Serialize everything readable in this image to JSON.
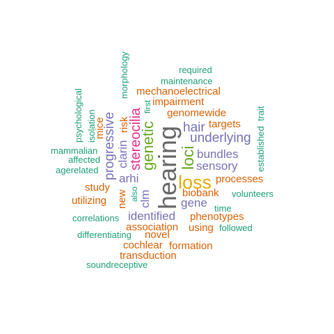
{
  "words": [
    {
      "id": "hearing",
      "text": "hearing",
      "color": "#666666"
    },
    {
      "id": "loss",
      "text": "loss",
      "color": "#E6AB02"
    },
    {
      "id": "stereocilia",
      "text": "stereocilia",
      "color": "#E7298A"
    },
    {
      "id": "genetic",
      "text": "genetic",
      "color": "#66A61E"
    },
    {
      "id": "loci",
      "text": "loci",
      "color": "#66A61E"
    },
    {
      "id": "hair",
      "text": "hair",
      "color": "#7570B3"
    },
    {
      "id": "underlying",
      "text": "underlying",
      "color": "#7570B3"
    },
    {
      "id": "bundles",
      "text": "bundles",
      "color": "#7570B3"
    },
    {
      "id": "sensory",
      "text": "sensory",
      "color": "#7570B3"
    },
    {
      "id": "progressive",
      "text": "progressive",
      "color": "#7570B3"
    },
    {
      "id": "clarin",
      "text": "clarin",
      "color": "#7570B3"
    },
    {
      "id": "arhi",
      "text": "arhi",
      "color": "#7570B3"
    },
    {
      "id": "clm",
      "text": "clm",
      "color": "#7570B3"
    },
    {
      "id": "gene",
      "text": "gene",
      "color": "#7570B3"
    },
    {
      "id": "identified",
      "text": "identified",
      "color": "#7570B3"
    },
    {
      "id": "mechanoelectrical",
      "text": "mechanoelectrical",
      "color": "#D95F02"
    },
    {
      "id": "impairment",
      "text": "impairment",
      "color": "#D95F02"
    },
    {
      "id": "genomewide",
      "text": "genomewide",
      "color": "#D95F02"
    },
    {
      "id": "targets",
      "text": "targets",
      "color": "#D95F02"
    },
    {
      "id": "processes",
      "text": "processes",
      "color": "#D95F02"
    },
    {
      "id": "biobank",
      "text": "biobank",
      "color": "#D95F02"
    },
    {
      "id": "phenotypes",
      "text": "phenotypes",
      "color": "#D95F02"
    },
    {
      "id": "association",
      "text": "association",
      "color": "#D95F02"
    },
    {
      "id": "using",
      "text": "using",
      "color": "#D95F02"
    },
    {
      "id": "novel",
      "text": "novel",
      "color": "#D95F02"
    },
    {
      "id": "cochlear",
      "text": "cochlear",
      "color": "#D95F02"
    },
    {
      "id": "formation",
      "text": "formation",
      "color": "#D95F02"
    },
    {
      "id": "transduction",
      "text": "transduction",
      "color": "#D95F02"
    },
    {
      "id": "study",
      "text": "study",
      "color": "#D95F02"
    },
    {
      "id": "utilizing",
      "text": "utilizing",
      "color": "#D95F02"
    },
    {
      "id": "mice",
      "text": "mice",
      "color": "#D95F02"
    },
    {
      "id": "risk",
      "text": "risk",
      "color": "#D95F02"
    },
    {
      "id": "new",
      "text": "new",
      "color": "#D95F02"
    },
    {
      "id": "required",
      "text": "required",
      "color": "#1B9E77"
    },
    {
      "id": "maintenance",
      "text": "maintenance",
      "color": "#1B9E77"
    },
    {
      "id": "morphology",
      "text": "morphology",
      "color": "#1B9E77"
    },
    {
      "id": "psychological",
      "text": "psychological",
      "color": "#1B9E77"
    },
    {
      "id": "isolation",
      "text": "isolation",
      "color": "#1B9E77"
    },
    {
      "id": "first",
      "text": "first",
      "color": "#1B9E77"
    },
    {
      "id": "established",
      "text": "established",
      "color": "#1B9E77"
    },
    {
      "id": "trait",
      "text": "trait",
      "color": "#1B9E77"
    },
    {
      "id": "mammalian",
      "text": "mammalian",
      "color": "#1B9E77"
    },
    {
      "id": "affected",
      "text": "affected",
      "color": "#1B9E77"
    },
    {
      "id": "agerelated",
      "text": "agerelated",
      "color": "#1B9E77"
    },
    {
      "id": "also",
      "text": "also",
      "color": "#1B9E77"
    },
    {
      "id": "volunteers",
      "text": "volunteers",
      "color": "#1B9E77"
    },
    {
      "id": "time",
      "text": "time",
      "color": "#1B9E77"
    },
    {
      "id": "correlations",
      "text": "correlations",
      "color": "#1B9E77"
    },
    {
      "id": "followed",
      "text": "followed",
      "color": "#1B9E77"
    },
    {
      "id": "differentiating",
      "text": "differentiating",
      "color": "#1B9E77"
    },
    {
      "id": "soundreceptive",
      "text": "soundreceptive",
      "color": "#1B9E77"
    }
  ]
}
